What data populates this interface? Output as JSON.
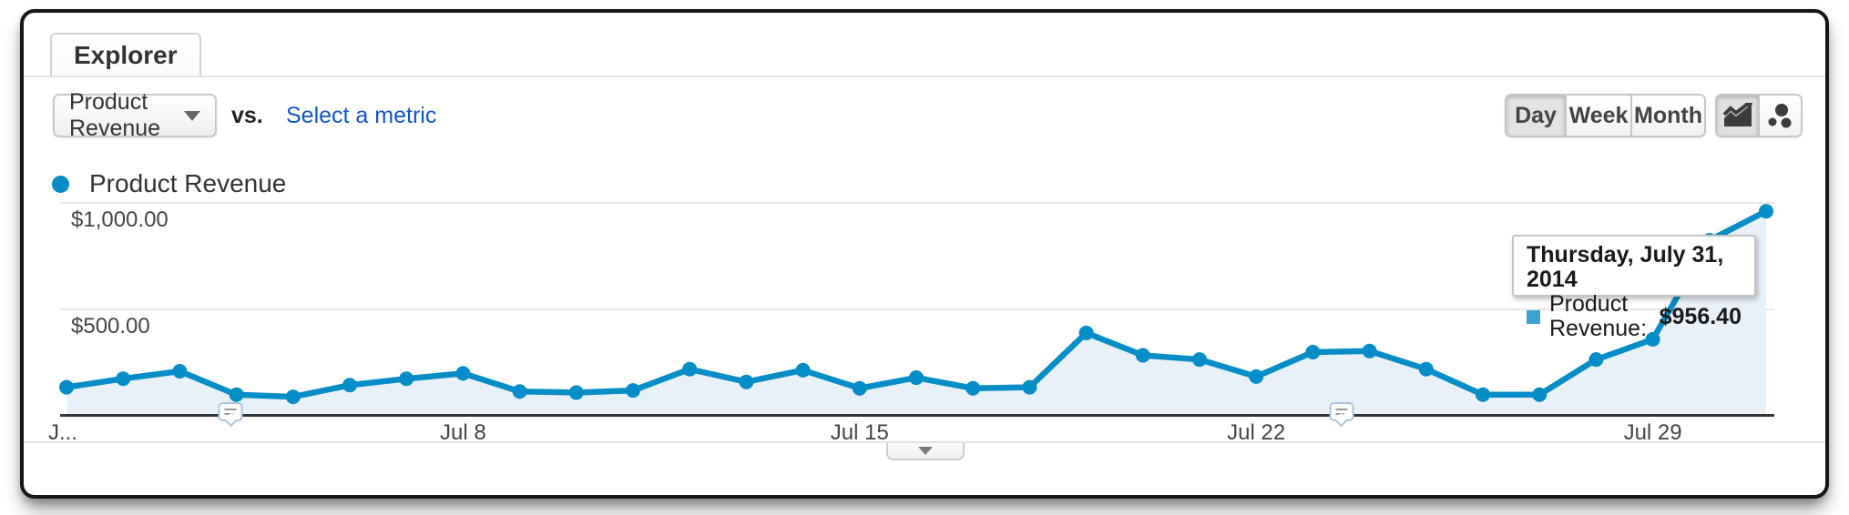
{
  "widget": {
    "tab_label": "Explorer"
  },
  "toolbar": {
    "metric_selector": {
      "value": "Product Revenue"
    },
    "vs_label": "vs.",
    "compare_metric_link": "Select a metric",
    "granularity_buttons": [
      {
        "label": "Day",
        "active": true
      },
      {
        "label": "Week",
        "active": false
      },
      {
        "label": "Month",
        "active": false
      }
    ],
    "chart_type_buttons": [
      {
        "name": "line-chart",
        "active": true
      },
      {
        "name": "motion-chart",
        "active": false
      }
    ]
  },
  "legend": {
    "series_label": "Product Revenue",
    "series_color": "#058dc7"
  },
  "tooltip": {
    "date": "Thursday, July 31, 2014",
    "series_label": "Product Revenue:",
    "value": "$956.40",
    "marker_color": "#3ba2d3"
  },
  "chart_data": {
    "type": "line",
    "series_name": "Product Revenue",
    "series_color": "#058dc7",
    "area_fill_color": "#e9f1f8",
    "unit": "USD",
    "grid": true,
    "legend_position": "top-left",
    "x": [
      "Jul 1",
      "Jul 2",
      "Jul 3",
      "Jul 4",
      "Jul 5",
      "Jul 6",
      "Jul 7",
      "Jul 8",
      "Jul 9",
      "Jul 10",
      "Jul 11",
      "Jul 12",
      "Jul 13",
      "Jul 14",
      "Jul 15",
      "Jul 16",
      "Jul 17",
      "Jul 18",
      "Jul 19",
      "Jul 20",
      "Jul 21",
      "Jul 22",
      "Jul 23",
      "Jul 24",
      "Jul 25",
      "Jul 26",
      "Jul 27",
      "Jul 28",
      "Jul 29",
      "Jul 30",
      "Jul 31"
    ],
    "values": [
      130,
      170,
      205,
      95,
      85,
      140,
      170,
      195,
      110,
      105,
      115,
      215,
      155,
      210,
      125,
      175,
      125,
      130,
      385,
      280,
      260,
      180,
      295,
      300,
      215,
      95,
      95,
      260,
      355,
      820,
      956.4
    ],
    "ylim": [
      0,
      1000
    ],
    "yticks": [
      {
        "value": 1000,
        "label": "$1,000.00"
      },
      {
        "value": 500,
        "label": "$500.00"
      }
    ],
    "xticks": [
      {
        "day_index": 0,
        "label": "J..."
      },
      {
        "day_index": 7,
        "label": "Jul 8"
      },
      {
        "day_index": 14,
        "label": "Jul 15"
      },
      {
        "day_index": 21,
        "label": "Jul 22"
      },
      {
        "day_index": 28,
        "label": "Jul 29"
      }
    ],
    "annotations": [
      {
        "day_index": 2.9
      },
      {
        "day_index": 22.5
      }
    ]
  }
}
